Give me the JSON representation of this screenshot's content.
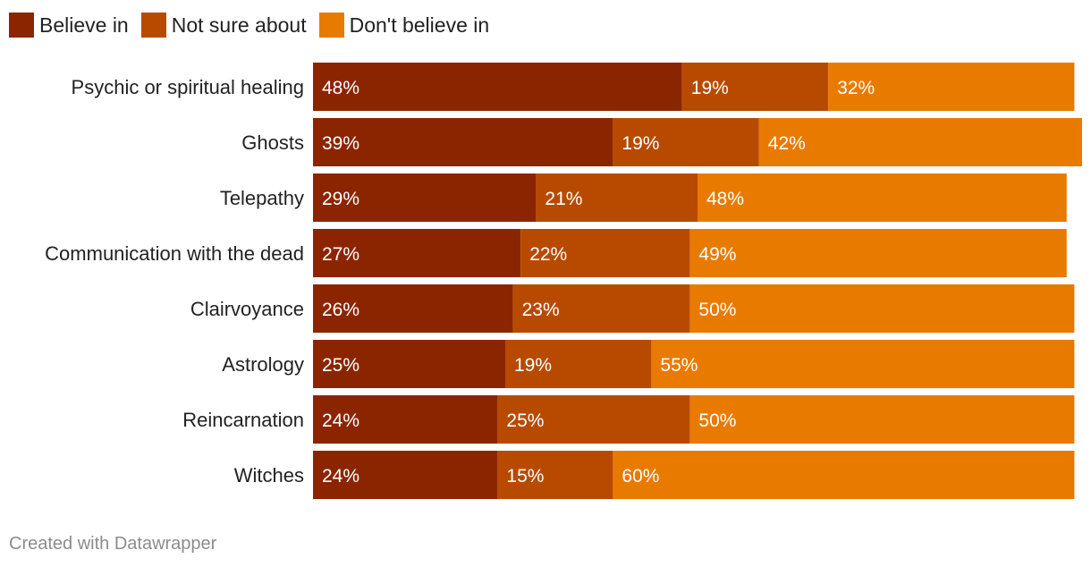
{
  "chart_data": {
    "type": "bar",
    "orientation": "horizontal",
    "stacked": true,
    "categories": [
      "Psychic or spiritual healing",
      "Ghosts",
      "Telepathy",
      "Communication with the dead",
      "Clairvoyance",
      "Astrology",
      "Reincarnation",
      "Witches"
    ],
    "series": [
      {
        "name": "Believe in",
        "color": "#8b2500",
        "values": [
          48,
          39,
          29,
          27,
          26,
          25,
          24,
          24
        ]
      },
      {
        "name": "Not sure about",
        "color": "#b84a00",
        "values": [
          19,
          19,
          21,
          22,
          23,
          19,
          25,
          15
        ]
      },
      {
        "name": "Don't believe in",
        "color": "#e97a00",
        "values": [
          32,
          42,
          48,
          49,
          50,
          55,
          50,
          60
        ]
      }
    ],
    "value_suffix": "%",
    "legend_position": "top-left",
    "grid": false
  },
  "footer": {
    "credit": "Created with Datawrapper"
  }
}
